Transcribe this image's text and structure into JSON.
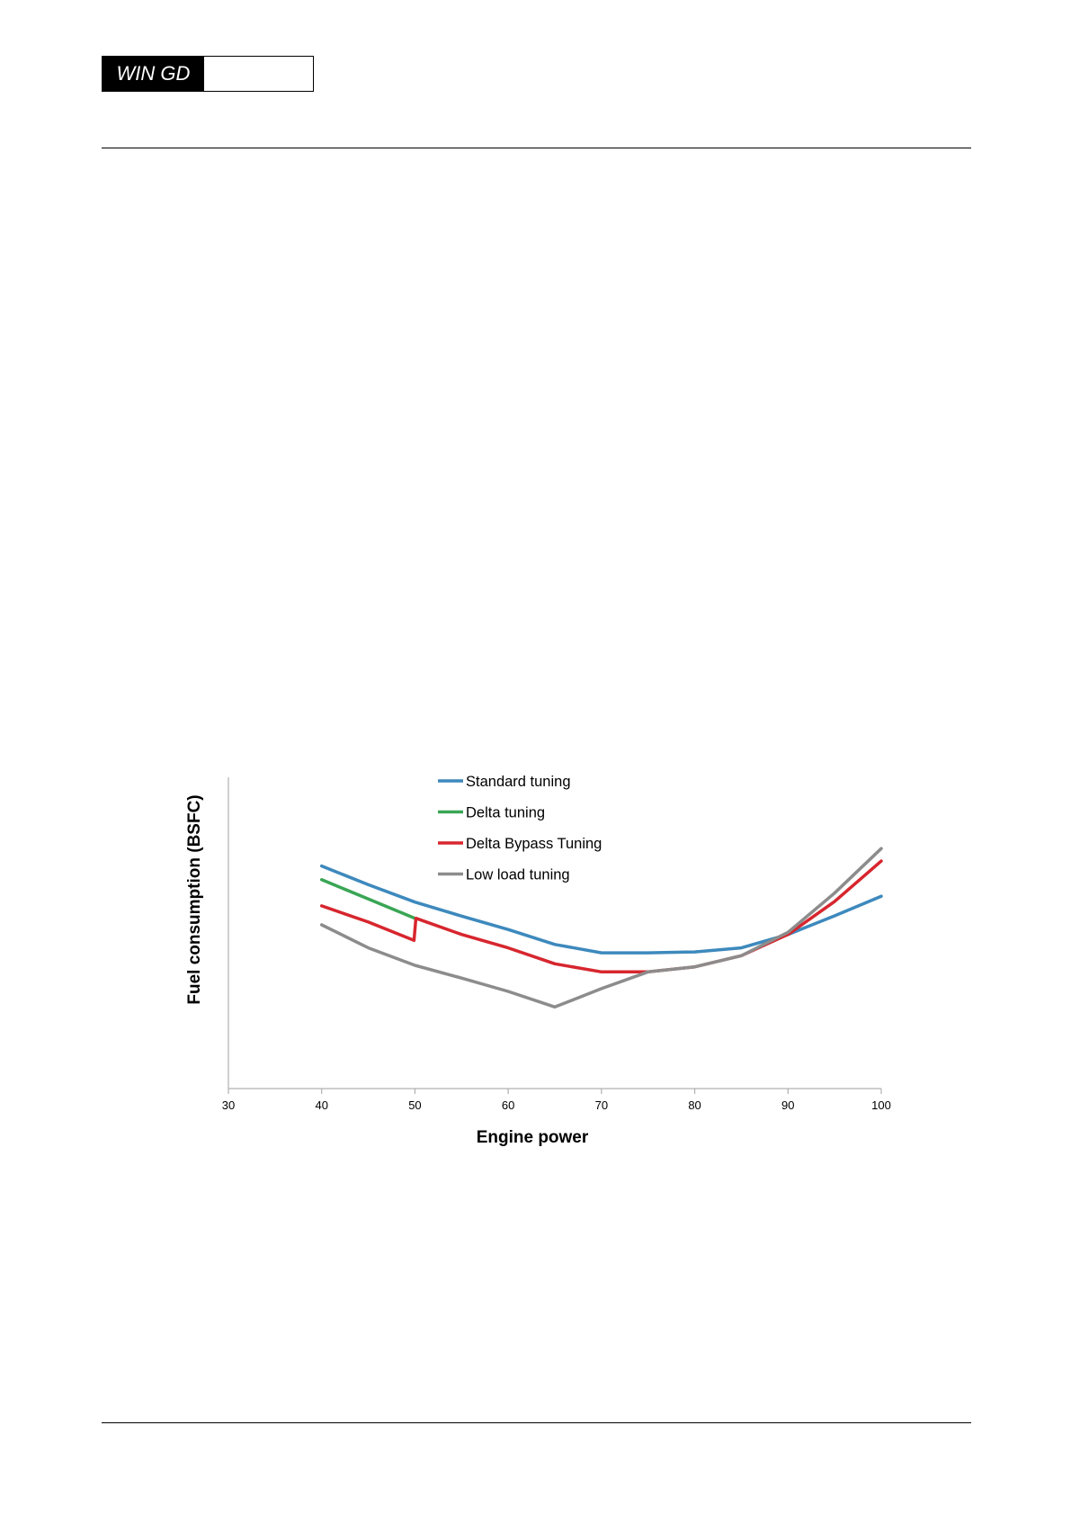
{
  "header": {
    "logo_text": "WIN GD"
  },
  "colors": {
    "standard": "#3d89bd",
    "delta": "#3aa655",
    "bypass": "#d7262e",
    "lowload": "#8c8c8c",
    "axis": "#b0b0b0"
  },
  "chart_data": {
    "type": "line",
    "xlabel": "Engine power",
    "ylabel": "Fuel consumption (BSFC)",
    "xlim": [
      30,
      100
    ],
    "xticks": [
      "30",
      "40",
      "50",
      "60",
      "70",
      "80",
      "90",
      "100"
    ],
    "ylim": [
      0,
      100
    ],
    "y_tick_labels": false,
    "grid": false,
    "legend_position": "top-center",
    "series": [
      {
        "name": "Standard tuning",
        "color": "#3d89bd",
        "points": [
          [
            40,
            71.5
          ],
          [
            45,
            65.5
          ],
          [
            50,
            59.9
          ],
          [
            55,
            55.4
          ],
          [
            60,
            51.1
          ],
          [
            65,
            46.3
          ],
          [
            70,
            43.6
          ],
          [
            75,
            43.6
          ],
          [
            80,
            43.9
          ],
          [
            85,
            45.2
          ],
          [
            90,
            49.5
          ],
          [
            95,
            55.5
          ],
          [
            100,
            61.8
          ]
        ]
      },
      {
        "name": "Delta tuning",
        "color": "#3aa655",
        "points": [
          [
            40,
            67.1
          ],
          [
            45,
            60.9
          ],
          [
            50,
            54.7
          ]
        ]
      },
      {
        "name": "Delta Bypass Tuning",
        "color": "#d7262e",
        "points": [
          [
            40,
            58.7
          ],
          [
            45,
            53.5
          ],
          [
            49.9,
            47.6
          ],
          [
            50.1,
            54.7
          ],
          [
            55,
            49.5
          ],
          [
            60,
            45.2
          ],
          [
            65,
            40.1
          ],
          [
            70,
            37.5
          ],
          [
            75,
            37.5
          ],
          [
            80,
            39.1
          ],
          [
            85,
            42.7
          ],
          [
            90,
            49.5
          ],
          [
            95,
            60.1
          ],
          [
            100,
            73.1
          ]
        ]
      },
      {
        "name": "Low load tuning",
        "color": "#8c8c8c",
        "points": [
          [
            40,
            52.6
          ],
          [
            45,
            45.2
          ],
          [
            50,
            39.6
          ],
          [
            55,
            35.5
          ],
          [
            60,
            31.2
          ],
          [
            65,
            26.2
          ],
          [
            70,
            32.1
          ],
          [
            75,
            37.5
          ],
          [
            80,
            39.1
          ],
          [
            85,
            42.7
          ],
          [
            90,
            50.2
          ],
          [
            95,
            62.8
          ],
          [
            100,
            77.1
          ]
        ]
      }
    ]
  }
}
